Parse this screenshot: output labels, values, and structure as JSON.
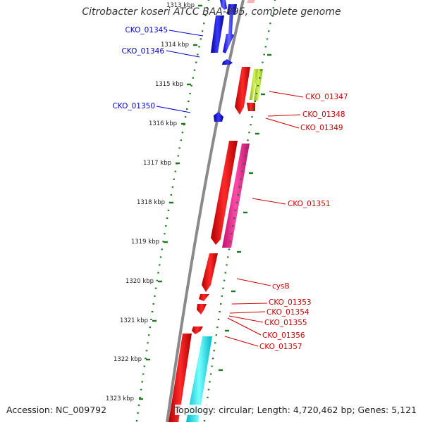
{
  "title": "Citrobacter koseri ATCC BAA-895, complete genome",
  "accession": "Accession: NC_009792",
  "summary": "Topology: circular; Length: 4,720,462 bp; Genes: 5,121",
  "colors": {
    "backbone": "#888888",
    "tick": "#1a7a1a",
    "forward_label": "#0000cc",
    "reverse_label": "#cc0000",
    "blue": "#0000ff",
    "red": "#ff0000",
    "magenta": "#ff1493",
    "lime": "#b5e61d",
    "cyan": "#00ffff"
  },
  "scale_labels": [
    {
      "text": "1313 kbp"
    },
    {
      "text": "1314 kbp"
    },
    {
      "text": "1315 kbp"
    },
    {
      "text": "1316 kbp"
    },
    {
      "text": "1317 kbp"
    },
    {
      "text": "1318 kbp"
    },
    {
      "text": "1319 kbp"
    },
    {
      "text": "1320 kbp"
    },
    {
      "text": "1321 kbp"
    },
    {
      "text": "1322 kbp"
    },
    {
      "text": "1323 kbp"
    }
  ],
  "genes": [
    {
      "label": "CKO_01345",
      "strand": "forward",
      "color": "blue"
    },
    {
      "label": "CKO_01346",
      "strand": "forward",
      "color": "blue"
    },
    {
      "label": "CKO_01350",
      "strand": "forward",
      "color": "blue"
    },
    {
      "label": "CKO_01347",
      "strand": "reverse",
      "color": "red"
    },
    {
      "label": "CKO_01348",
      "strand": "reverse",
      "color": "lime"
    },
    {
      "label": "CKO_01349",
      "strand": "reverse",
      "color": "red"
    },
    {
      "label": "CKO_01351",
      "strand": "reverse",
      "color": "magenta"
    },
    {
      "label": "cysB",
      "strand": "reverse",
      "color": "red"
    },
    {
      "label": "CKO_01353",
      "strand": "reverse",
      "color": "red"
    },
    {
      "label": "CKO_01354",
      "strand": "reverse",
      "color": "red"
    },
    {
      "label": "CKO_01355",
      "strand": "reverse",
      "color": "red"
    },
    {
      "label": "CKO_01356",
      "strand": "reverse",
      "color": "red"
    },
    {
      "label": "CKO_01357",
      "strand": "reverse",
      "color": "cyan"
    }
  ]
}
